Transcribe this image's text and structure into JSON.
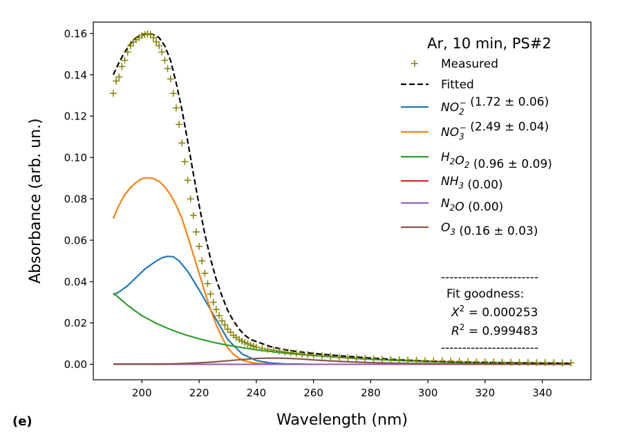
{
  "chart_data": {
    "type": "line",
    "panel_label": "(e)",
    "title": "",
    "xlabel": "Wavelength (nm)",
    "ylabel": "Absorbance (arb. un.)",
    "xlim": [
      183,
      357
    ],
    "ylim": [
      -0.0075,
      0.1655
    ],
    "xticks": [
      200,
      220,
      240,
      260,
      280,
      300,
      320,
      340
    ],
    "yticks": [
      0.0,
      0.02,
      0.04,
      0.06,
      0.08,
      0.1,
      0.12,
      0.14,
      0.16
    ],
    "xtick_labels": [
      "200",
      "220",
      "240",
      "260",
      "280",
      "300",
      "320",
      "340"
    ],
    "ytick_labels": [
      "0.00",
      "0.02",
      "0.04",
      "0.06",
      "0.08",
      "0.10",
      "0.12",
      "0.14",
      "0.16"
    ],
    "grid": false,
    "legend_position": "top-right",
    "legend": {
      "title": "Ar, 10 min, PS#2",
      "entries": [
        {
          "base": "Measured",
          "rest": "",
          "color": "#808000",
          "style": "marker-plus"
        },
        {
          "base": "Fitted",
          "rest": "",
          "color": "#000000",
          "style": "dashed"
        },
        {
          "base": "NO",
          "sub": "2",
          "sup": "−",
          "rest": " (1.72 ± 0.06)",
          "color": "#1f77b4",
          "style": "line"
        },
        {
          "base": "NO",
          "sub": "3",
          "sup": "−",
          "rest": " (2.49 ± 0.04)",
          "color": "#ff7f0e",
          "style": "line"
        },
        {
          "base": "H",
          "sub": "2",
          "base2": "O",
          "sub2": "2",
          "rest": " (0.96 ± 0.09)",
          "color": "#2ca02c",
          "style": "line"
        },
        {
          "base": "NH",
          "sub": "3",
          "rest": " (0.00)",
          "color": "#d62728",
          "style": "line"
        },
        {
          "base": "N",
          "sub": "2",
          "base2": "O",
          "rest": " (0.00)",
          "color": "#9467bd",
          "style": "line"
        },
        {
          "base": "O",
          "sub": "3",
          "rest": " (0.16 ± 0.03)",
          "color": "#8c564b",
          "style": "line"
        }
      ]
    },
    "annotation": {
      "divider": "-----------------------",
      "heading": "Fit goodness:",
      "chi2_label": "X",
      "chi2_value": " = 0.000253",
      "r2_label": "R",
      "r2_value": " = 0.999483",
      "power": "2"
    },
    "series": [
      {
        "name": "Measured",
        "type": "scatter",
        "marker": "+",
        "color": "#808000",
        "x": [
          190,
          191,
          192,
          193,
          194,
          195,
          196,
          197,
          198,
          199,
          200,
          201,
          202,
          203,
          204,
          205,
          206,
          207,
          208,
          209,
          210,
          211,
          212,
          213,
          214,
          215,
          216,
          217,
          218,
          219,
          220,
          221,
          222,
          223,
          224,
          225,
          226,
          227,
          228,
          229,
          230,
          231,
          232,
          233,
          234,
          235,
          236,
          237,
          238,
          239,
          240,
          242,
          244,
          246,
          248,
          250,
          252,
          254,
          256,
          258,
          260,
          263,
          266,
          269,
          272,
          275,
          278,
          281,
          284,
          287,
          290,
          293,
          296,
          299,
          302,
          305,
          308,
          311,
          314,
          317,
          320,
          323,
          326,
          329,
          332,
          335,
          338,
          341,
          344,
          347,
          350
        ],
        "y": [
          0.131,
          0.137,
          0.139,
          0.144,
          0.147,
          0.151,
          0.154,
          0.156,
          0.157,
          0.158,
          0.159,
          0.1595,
          0.1598,
          0.1595,
          0.158,
          0.156,
          0.154,
          0.151,
          0.147,
          0.143,
          0.138,
          0.131,
          0.124,
          0.116,
          0.107,
          0.098,
          0.089,
          0.08,
          0.072,
          0.064,
          0.057,
          0.05,
          0.044,
          0.039,
          0.034,
          0.03,
          0.0265,
          0.0235,
          0.021,
          0.019,
          0.017,
          0.0155,
          0.014,
          0.013,
          0.012,
          0.0112,
          0.0105,
          0.0099,
          0.0093,
          0.0088,
          0.0083,
          0.0077,
          0.0072,
          0.0068,
          0.0064,
          0.006,
          0.0056,
          0.0053,
          0.005,
          0.0047,
          0.0044,
          0.0041,
          0.0038,
          0.0035,
          0.0032,
          0.003,
          0.0028,
          0.0026,
          0.0024,
          0.0023,
          0.0022,
          0.002,
          0.0019,
          0.0018,
          0.0017,
          0.0016,
          0.0015,
          0.0014,
          0.0013,
          0.0012,
          0.0012,
          0.0011,
          0.001,
          0.001,
          0.0009,
          0.0009,
          0.0008,
          0.0008,
          0.0008,
          0.0007,
          0.0007
        ]
      },
      {
        "name": "Fitted",
        "type": "line",
        "dashed": true,
        "color": "#000000",
        "x": [
          190,
          192,
          194,
          196,
          198,
          200,
          202,
          204,
          206,
          208,
          210,
          212,
          214,
          216,
          218,
          220,
          222,
          224,
          226,
          228,
          230,
          232,
          234,
          236,
          238,
          240,
          245,
          250,
          255,
          260,
          270,
          280,
          290,
          300,
          310,
          320,
          330,
          340,
          350
        ],
        "y": [
          0.14,
          0.146,
          0.151,
          0.155,
          0.158,
          0.1595,
          0.16,
          0.1595,
          0.158,
          0.154,
          0.147,
          0.136,
          0.123,
          0.108,
          0.092,
          0.077,
          0.063,
          0.051,
          0.041,
          0.033,
          0.026,
          0.021,
          0.017,
          0.014,
          0.012,
          0.011,
          0.0085,
          0.007,
          0.006,
          0.0052,
          0.004,
          0.003,
          0.0022,
          0.0016,
          0.0012,
          0.0009,
          0.0007,
          0.0006,
          0.0005
        ]
      },
      {
        "name": "NO2−",
        "type": "line",
        "color": "#1f77b4",
        "x": [
          190,
          192,
          195,
          198,
          201,
          204,
          207,
          209,
          211,
          213,
          216,
          220,
          225,
          230,
          235,
          240,
          245,
          250,
          255,
          260
        ],
        "y": [
          0.0335,
          0.035,
          0.038,
          0.042,
          0.046,
          0.049,
          0.0515,
          0.0522,
          0.052,
          0.05,
          0.045,
          0.036,
          0.024,
          0.012,
          0.005,
          0.0018,
          0.0006,
          0.0002,
          0.0001,
          0.0
        ]
      },
      {
        "name": "NO3−",
        "type": "line",
        "color": "#ff7f0e",
        "x": [
          190,
          192,
          194,
          196,
          198,
          200,
          202,
          204,
          206,
          208,
          210,
          212,
          214,
          216,
          218,
          220,
          222,
          224,
          226,
          228,
          230,
          232,
          235,
          238,
          240,
          245
        ],
        "y": [
          0.0705,
          0.077,
          0.082,
          0.0855,
          0.088,
          0.0898,
          0.0902,
          0.0899,
          0.0885,
          0.0858,
          0.082,
          0.0768,
          0.0705,
          0.062,
          0.053,
          0.044,
          0.035,
          0.0265,
          0.019,
          0.013,
          0.008,
          0.0048,
          0.002,
          0.0009,
          0.0005,
          0.0001
        ]
      },
      {
        "name": "H2O2",
        "type": "line",
        "color": "#2ca02c",
        "x": [
          190,
          195,
          200,
          205,
          210,
          215,
          220,
          225,
          230,
          240,
          250,
          260,
          270,
          280,
          290,
          300,
          320,
          340,
          350
        ],
        "y": [
          0.0345,
          0.0285,
          0.0235,
          0.0198,
          0.0168,
          0.0143,
          0.0123,
          0.0106,
          0.0092,
          0.007,
          0.0054,
          0.0042,
          0.0032,
          0.0024,
          0.0018,
          0.0013,
          0.0006,
          0.0002,
          0.0001
        ]
      },
      {
        "name": "NH3",
        "type": "line",
        "color": "#d62728",
        "x": [
          190,
          350
        ],
        "y": [
          0.0,
          0.0
        ]
      },
      {
        "name": "N2O",
        "type": "line",
        "color": "#9467bd",
        "x": [
          190,
          350
        ],
        "y": [
          0.0,
          0.0
        ]
      },
      {
        "name": "O3",
        "type": "line",
        "color": "#8c564b",
        "x": [
          190,
          200,
          210,
          215,
          220,
          225,
          230,
          235,
          240,
          245,
          250,
          255,
          260,
          270,
          280,
          290,
          300,
          320,
          340,
          350
        ],
        "y": [
          0.0001,
          0.0001,
          0.0002,
          0.0004,
          0.0007,
          0.0011,
          0.0017,
          0.0023,
          0.0028,
          0.003,
          0.0029,
          0.0026,
          0.0021,
          0.0013,
          0.0008,
          0.0005,
          0.0003,
          0.0001,
          0.0,
          0.0
        ]
      }
    ]
  }
}
